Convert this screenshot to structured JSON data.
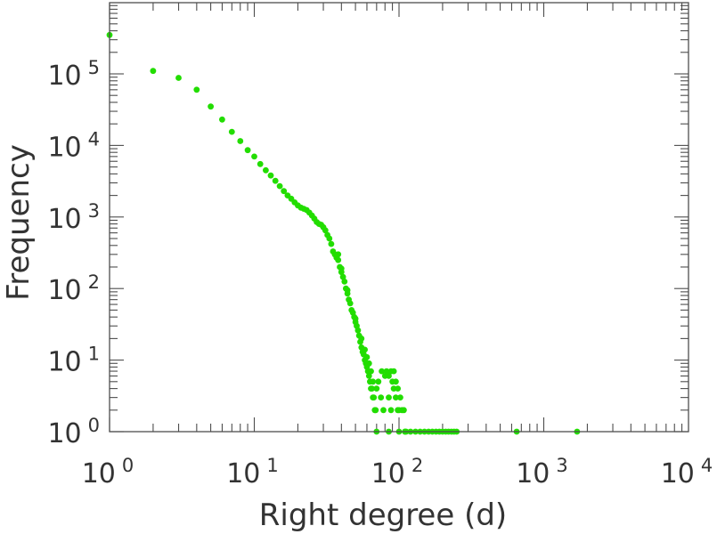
{
  "chart_data": {
    "type": "scatter",
    "title": "",
    "xlabel": "Right degree (d)",
    "ylabel": "Frequency",
    "x_scale": "log",
    "y_scale": "log",
    "xlim": [
      1,
      10000
    ],
    "ylim": [
      1,
      1000000
    ],
    "grid": false,
    "legend": "none",
    "marker_color": "#22dd00",
    "x_ticks": [
      {
        "base": "10",
        "exp": "0",
        "value": 1
      },
      {
        "base": "10",
        "exp": "1",
        "value": 10
      },
      {
        "base": "10",
        "exp": "2",
        "value": 100
      },
      {
        "base": "10",
        "exp": "3",
        "value": 1000
      },
      {
        "base": "10",
        "exp": "4",
        "value": 10000
      }
    ],
    "y_ticks": [
      {
        "base": "10",
        "exp": "0",
        "value": 1
      },
      {
        "base": "10",
        "exp": "1",
        "value": 10
      },
      {
        "base": "10",
        "exp": "2",
        "value": 100
      },
      {
        "base": "10",
        "exp": "3",
        "value": 1000
      },
      {
        "base": "10",
        "exp": "4",
        "value": 10000
      },
      {
        "base": "10",
        "exp": "5",
        "value": 100000
      }
    ],
    "series": [
      {
        "points": [
          [
            1,
            350000
          ],
          [
            2,
            110000
          ],
          [
            3,
            88000
          ],
          [
            4,
            60000
          ],
          [
            5,
            35000
          ],
          [
            6,
            23000
          ],
          [
            7,
            15500
          ],
          [
            8,
            11500
          ],
          [
            9,
            8600
          ],
          [
            10,
            7000
          ],
          [
            11,
            5500
          ],
          [
            12,
            4500
          ],
          [
            13,
            3800
          ],
          [
            14,
            3200
          ],
          [
            15,
            2700
          ],
          [
            16,
            2300
          ],
          [
            17,
            2000
          ],
          [
            18,
            1800
          ],
          [
            19,
            1600
          ],
          [
            20,
            1450
          ],
          [
            21,
            1350
          ],
          [
            22,
            1300
          ],
          [
            23,
            1250
          ],
          [
            24,
            1150
          ],
          [
            25,
            1050
          ],
          [
            26,
            950
          ],
          [
            27,
            850
          ],
          [
            28,
            800
          ],
          [
            29,
            780
          ],
          [
            30,
            720
          ],
          [
            31,
            650
          ],
          [
            32,
            560
          ],
          [
            33,
            500
          ],
          [
            34,
            420
          ],
          [
            35,
            330
          ],
          [
            36,
            300
          ],
          [
            37,
            270
          ],
          [
            38,
            250
          ],
          [
            39,
            200
          ],
          [
            40,
            170
          ],
          [
            41,
            145
          ],
          [
            42,
            125
          ],
          [
            43,
            100
          ],
          [
            44,
            85
          ],
          [
            45,
            70
          ],
          [
            46,
            62
          ],
          [
            47,
            50
          ],
          [
            48,
            46
          ],
          [
            49,
            40
          ],
          [
            50,
            34
          ],
          [
            51,
            30
          ],
          [
            52,
            26
          ],
          [
            53,
            22
          ],
          [
            54,
            18
          ],
          [
            55,
            15
          ],
          [
            56,
            13
          ],
          [
            57,
            12
          ],
          [
            58,
            10
          ],
          [
            59,
            9
          ],
          [
            60,
            8
          ],
          [
            61,
            7
          ],
          [
            62,
            6
          ],
          [
            63,
            5
          ],
          [
            64,
            4
          ],
          [
            65,
            4
          ],
          [
            66,
            3
          ],
          [
            67,
            3
          ],
          [
            68,
            2
          ],
          [
            69,
            2
          ],
          [
            70,
            1
          ],
          [
            38,
            300
          ],
          [
            40,
            190
          ],
          [
            44,
            95
          ],
          [
            50,
            38
          ],
          [
            55,
            20
          ],
          [
            58,
            14
          ],
          [
            60,
            11
          ],
          [
            62,
            9
          ],
          [
            64,
            7
          ],
          [
            66,
            5
          ],
          [
            70,
            4
          ],
          [
            75,
            3
          ],
          [
            78,
            2
          ],
          [
            72,
            5
          ],
          [
            76,
            7
          ],
          [
            80,
            6
          ],
          [
            82,
            7
          ],
          [
            85,
            6
          ],
          [
            88,
            7
          ],
          [
            90,
            5
          ],
          [
            92,
            4
          ],
          [
            95,
            3
          ],
          [
            98,
            2
          ],
          [
            100,
            2
          ],
          [
            85,
            3
          ],
          [
            88,
            2
          ],
          [
            92,
            7
          ],
          [
            95,
            5
          ],
          [
            98,
            4
          ],
          [
            102,
            3
          ],
          [
            105,
            2
          ],
          [
            108,
            2
          ],
          [
            110,
            1
          ],
          [
            112,
            1
          ],
          [
            85,
            1
          ],
          [
            100,
            1
          ],
          [
            110,
            1
          ],
          [
            120,
            1
          ],
          [
            130,
            1
          ],
          [
            140,
            1
          ],
          [
            150,
            1
          ],
          [
            160,
            1
          ],
          [
            170,
            1
          ],
          [
            180,
            1
          ],
          [
            190,
            1
          ],
          [
            200,
            1
          ],
          [
            210,
            1
          ],
          [
            220,
            1
          ],
          [
            230,
            1
          ],
          [
            240,
            1
          ],
          [
            250,
            1
          ],
          [
            650,
            1
          ],
          [
            1700,
            1
          ]
        ]
      }
    ]
  }
}
